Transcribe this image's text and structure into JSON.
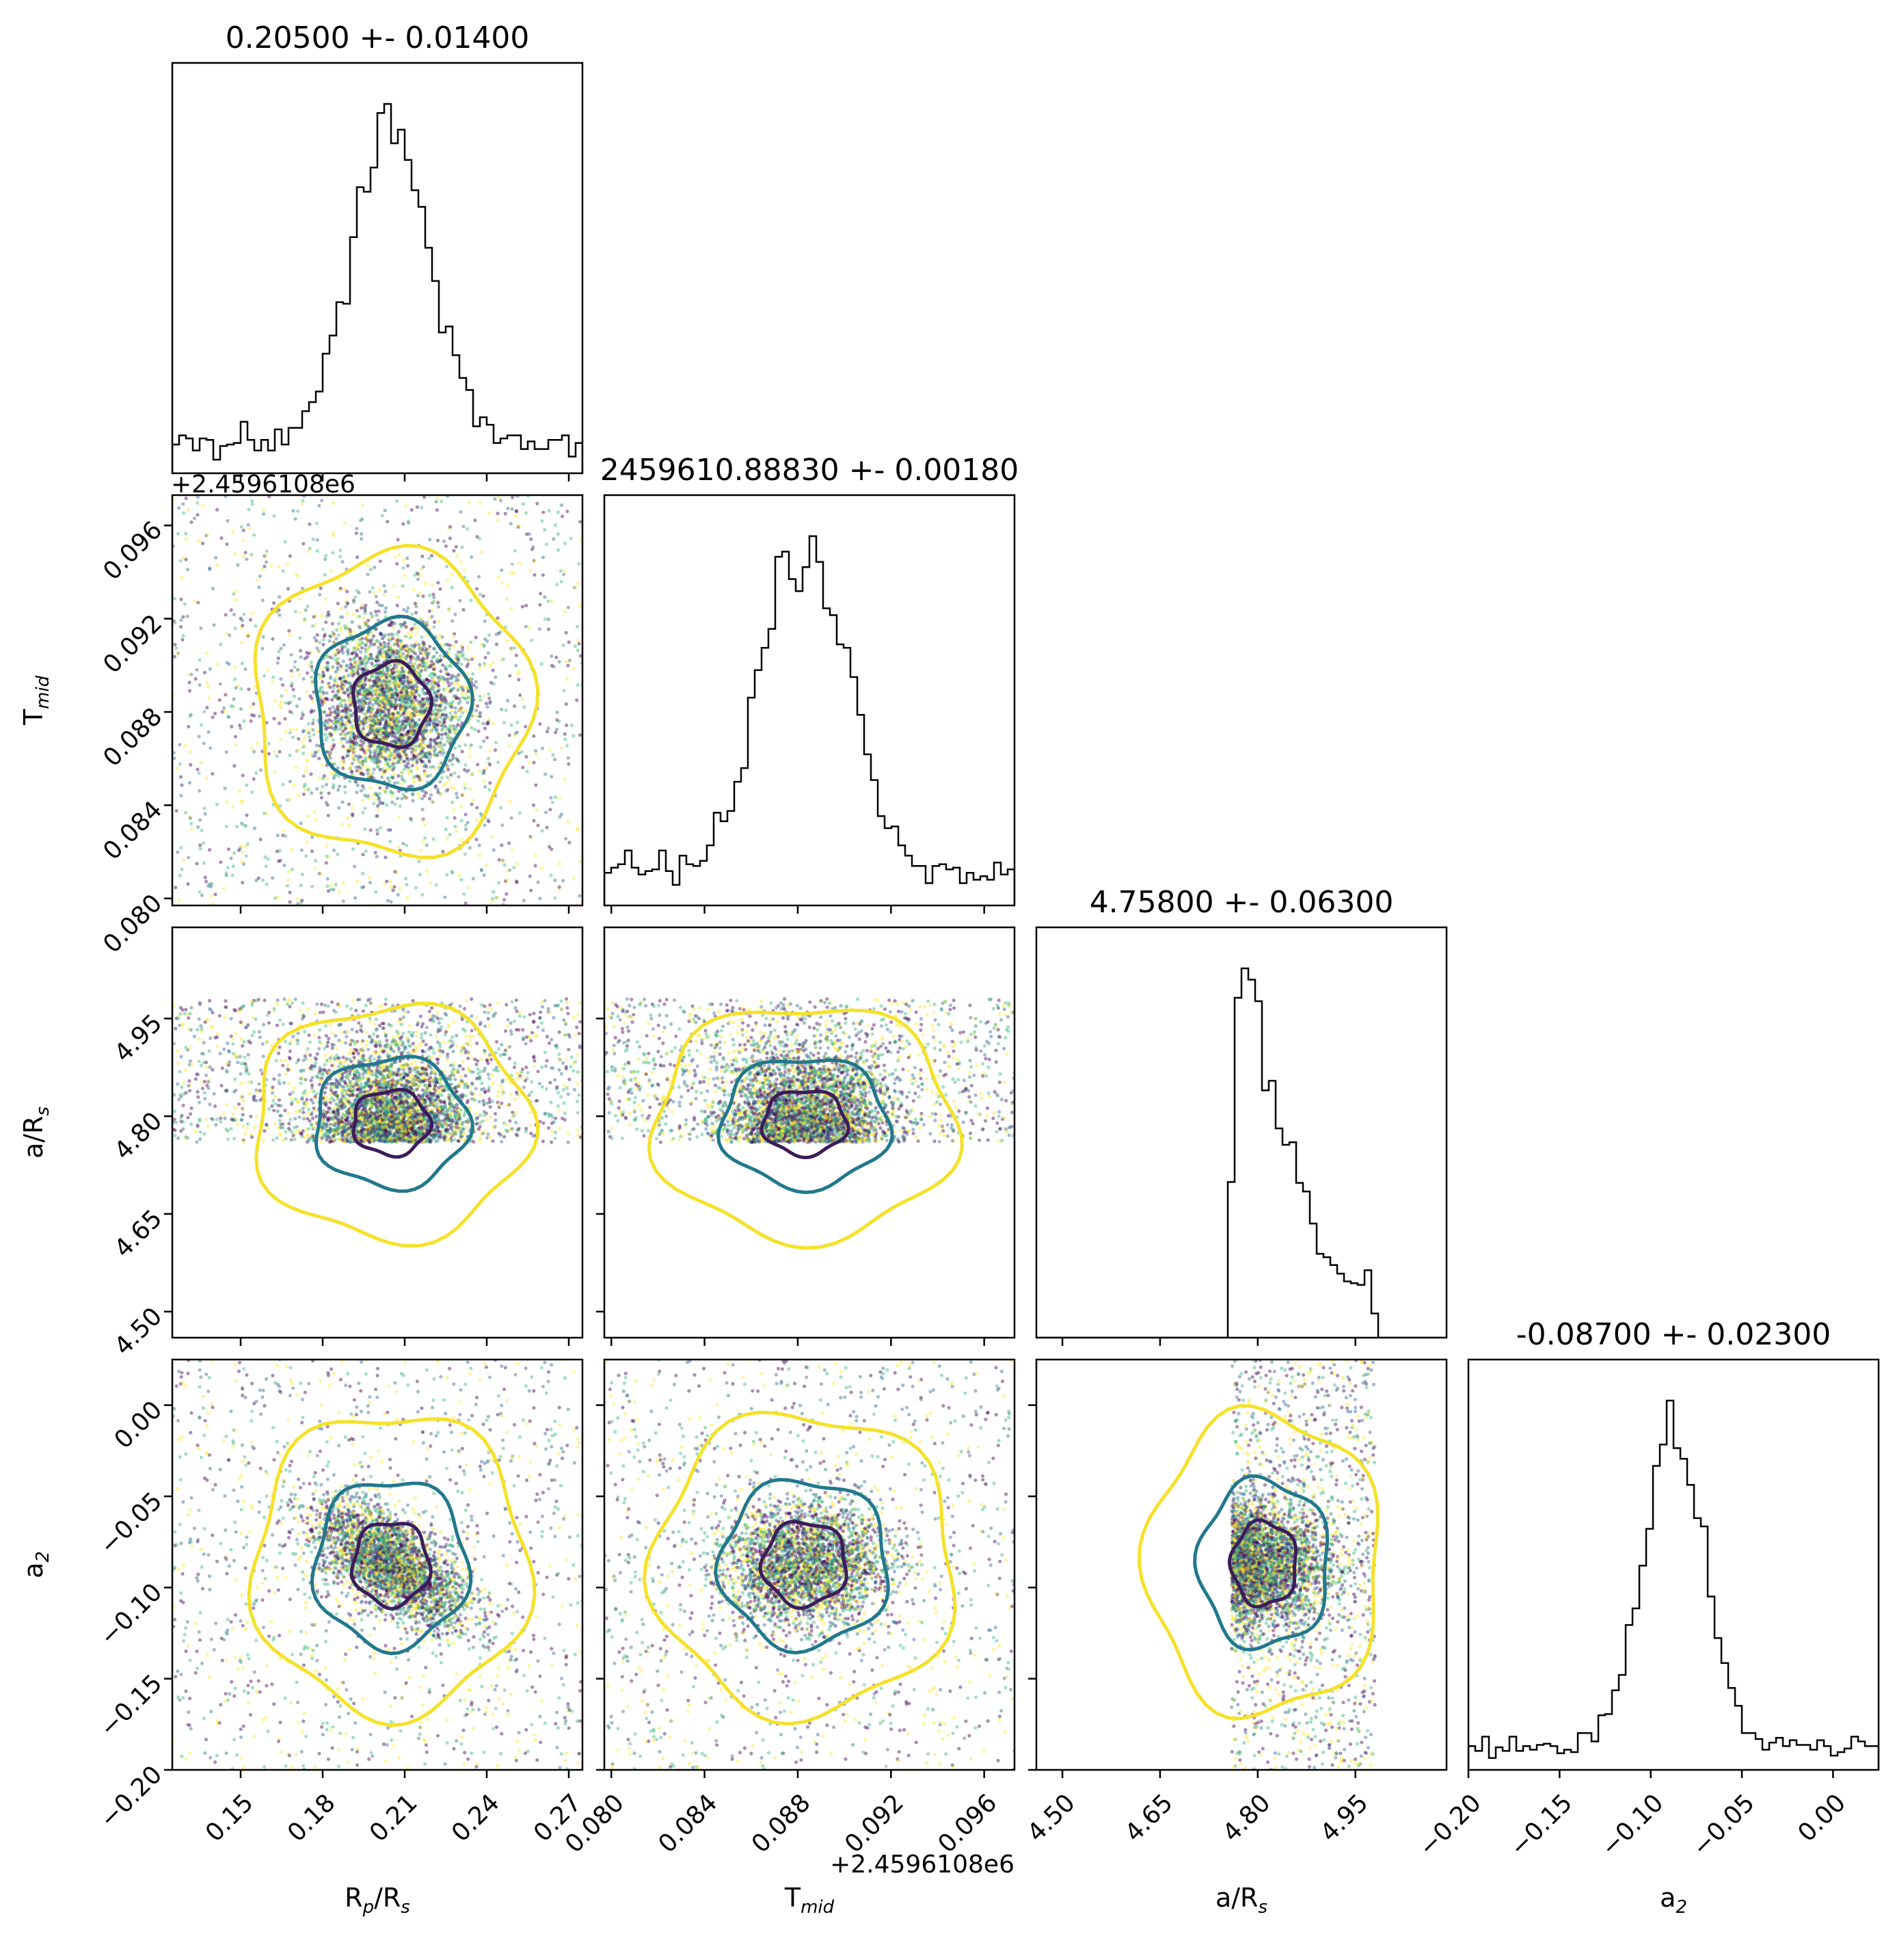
{
  "chart_data": {
    "type": "scatter",
    "kind": "corner-plot",
    "parameters": [
      {
        "id": "rp",
        "label": "R",
        "sub": "p",
        "label_tail": "/R",
        "sub2": "s",
        "title": "0.20500 +- 0.01400",
        "mean": 0.205,
        "sigma": 0.014,
        "range": [
          0.125,
          0.275
        ],
        "ticks": [
          "0.15",
          "0.18",
          "0.21",
          "0.24",
          "0.27"
        ]
      },
      {
        "id": "tmid",
        "label": "T",
        "sub": "mid",
        "label_tail": "",
        "sub2": "",
        "title": "2459610.88830 +- 0.00180",
        "mean": 0.0883,
        "sigma": 0.0018,
        "range": [
          0.0797,
          0.0973
        ],
        "ticks": [
          "0.080",
          "0.084",
          "0.088",
          "0.092",
          "0.096"
        ],
        "offset_text": "+2.4596108e6"
      },
      {
        "id": "ars",
        "label": "a/R",
        "sub": "s",
        "label_tail": "",
        "sub2": "",
        "title": "4.75800 +- 0.06300",
        "mean": 4.758,
        "sigma": 0.063,
        "range": [
          4.46,
          5.09
        ],
        "ticks": [
          "4.50",
          "4.65",
          "4.80",
          "4.95"
        ],
        "bounds": [
          4.76,
          4.98
        ]
      },
      {
        "id": "a2",
        "label": "a",
        "sub": "2",
        "label_tail": "",
        "sub2": "",
        "title": "-0.08700 +- 0.02300",
        "mean": -0.087,
        "sigma": 0.023,
        "range": [
          -0.2,
          0.025
        ],
        "ticks": [
          "−0.20",
          "−0.15",
          "−0.10",
          "−0.05",
          "0.00"
        ]
      }
    ],
    "contour_colors": [
      "#3b1c5a",
      "#21788c",
      "#f5e12a"
    ],
    "scatter_cmap": [
      "#440154",
      "#31688e",
      "#35b779",
      "#fde725"
    ],
    "histogram_color": "#000000",
    "hist_bins": 60
  }
}
